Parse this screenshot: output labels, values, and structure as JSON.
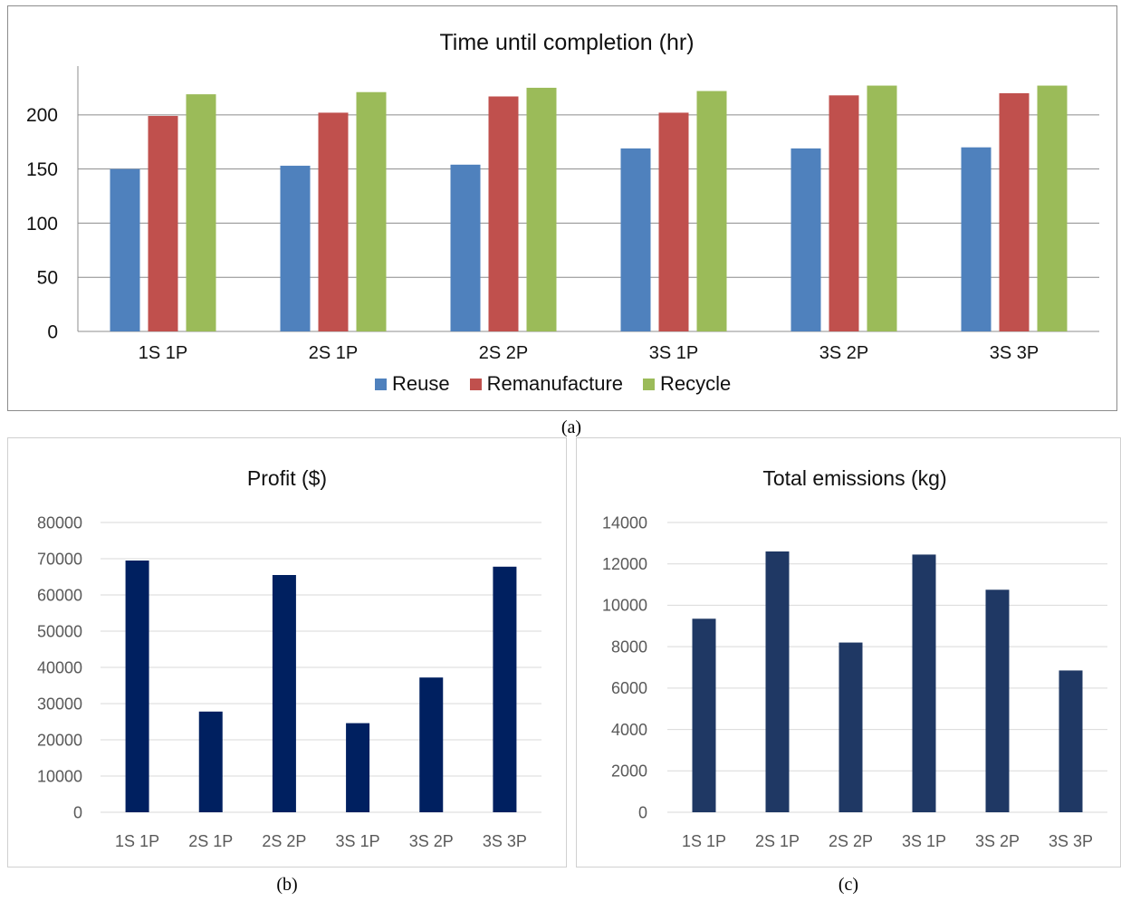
{
  "captions": [
    "(a)",
    "(b)",
    "(c)"
  ],
  "chart_data": [
    {
      "type": "bar",
      "title": "Time until completion (hr)",
      "categories": [
        "1S 1P",
        "2S 1P",
        "2S 2P",
        "3S 1P",
        "3S 2P",
        "3S 3P"
      ],
      "series": [
        {
          "name": "Reuse",
          "color": "#4f81bd",
          "values": [
            150,
            153,
            154,
            169,
            169,
            170
          ]
        },
        {
          "name": "Remanufacture",
          "color": "#c0504d",
          "values": [
            199,
            202,
            217,
            202,
            218,
            220
          ]
        },
        {
          "name": "Recycle",
          "color": "#9bbb59",
          "values": [
            219,
            221,
            225,
            222,
            227,
            227
          ]
        }
      ],
      "yticks": [
        0,
        50,
        100,
        150,
        200
      ],
      "ylim": [
        0,
        240
      ],
      "grid": true,
      "legend": "bottom"
    },
    {
      "type": "bar",
      "title": "Profit ($)",
      "categories": [
        "1S 1P",
        "2S 1P",
        "2S 2P",
        "3S 1P",
        "3S 2P",
        "3S 3P"
      ],
      "series": [
        {
          "color": "#002060",
          "values": [
            69500,
            27800,
            65500,
            24600,
            37200,
            67800
          ]
        }
      ],
      "yticks": [
        0,
        10000,
        20000,
        30000,
        40000,
        50000,
        60000,
        70000,
        80000
      ],
      "ylim": [
        0,
        80000
      ],
      "grid": true
    },
    {
      "type": "bar",
      "title": "Total emissions (kg)",
      "categories": [
        "1S 1P",
        "2S 1P",
        "2S 2P",
        "3S 1P",
        "3S 2P",
        "3S 3P"
      ],
      "series": [
        {
          "color": "#1f3864",
          "values": [
            9350,
            12600,
            8200,
            12450,
            10750,
            6850
          ]
        }
      ],
      "yticks": [
        0,
        2000,
        4000,
        6000,
        8000,
        10000,
        12000,
        14000
      ],
      "ylim": [
        0,
        14000
      ],
      "grid": true
    }
  ]
}
